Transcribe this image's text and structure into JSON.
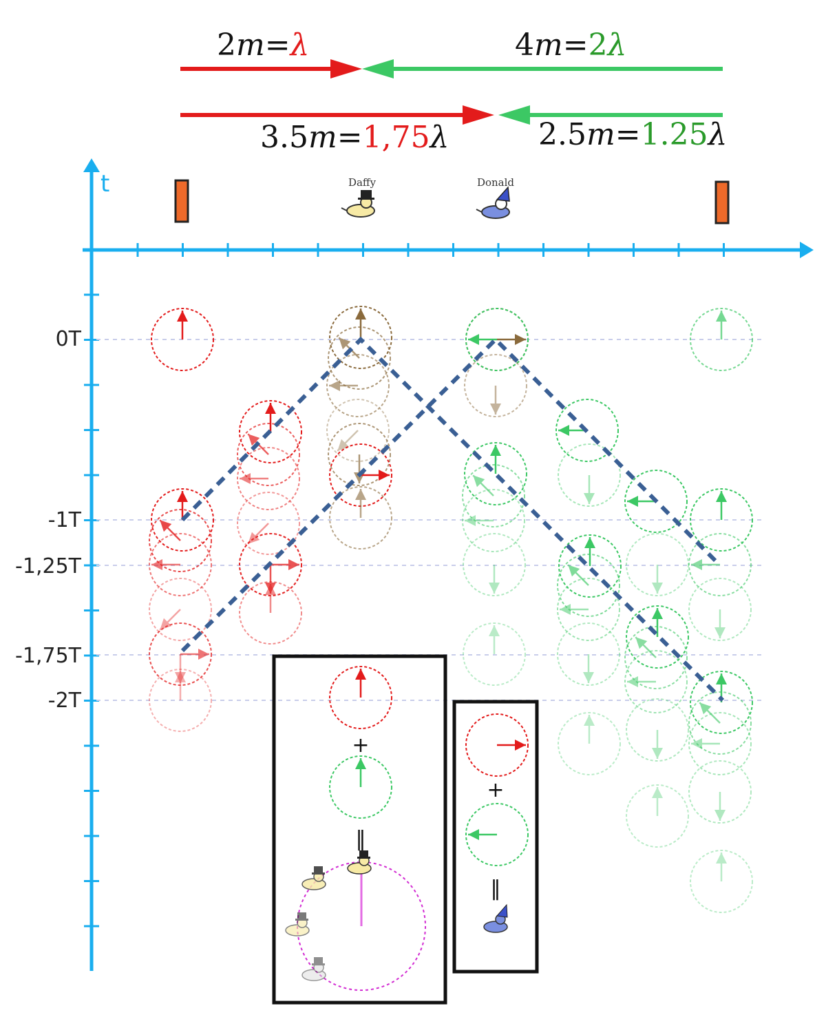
{
  "colors": {
    "red": "#e31b1b",
    "green": "#3cc864",
    "axis": "#19aeef",
    "path": "#3a5f94",
    "magenta": "#d22cd2",
    "wall": "#ee6a2a",
    "brown": "#8a6a3c"
  },
  "top": {
    "row1": {
      "red": {
        "num": "2",
        "unit": "m",
        "eq": "=",
        "lambda": "λ"
      },
      "green": {
        "num": "4",
        "unit": "m",
        "eq": "=",
        "mult": "2",
        "lambda": "λ"
      }
    },
    "row2": {
      "red": {
        "num": "3.5",
        "unit": "m",
        "eq": "=",
        "mult": "1,75",
        "lambda": "λ"
      },
      "green": {
        "num": "2.5",
        "unit": "m",
        "eq": "=",
        "mult": "1.25",
        "lambda": "λ"
      }
    }
  },
  "axis": {
    "t_label": "t",
    "time_labels": {
      "t0": "0T",
      "t1": "-1T",
      "t125": "-1,25T",
      "t175": "-1,75T",
      "t2": "-2T"
    }
  },
  "characters": {
    "daffy": "Daffy",
    "donald": "Donald"
  },
  "box_left": {
    "plus": "+",
    "equals": "="
  },
  "box_right": {
    "plus": "+",
    "equals": "="
  }
}
